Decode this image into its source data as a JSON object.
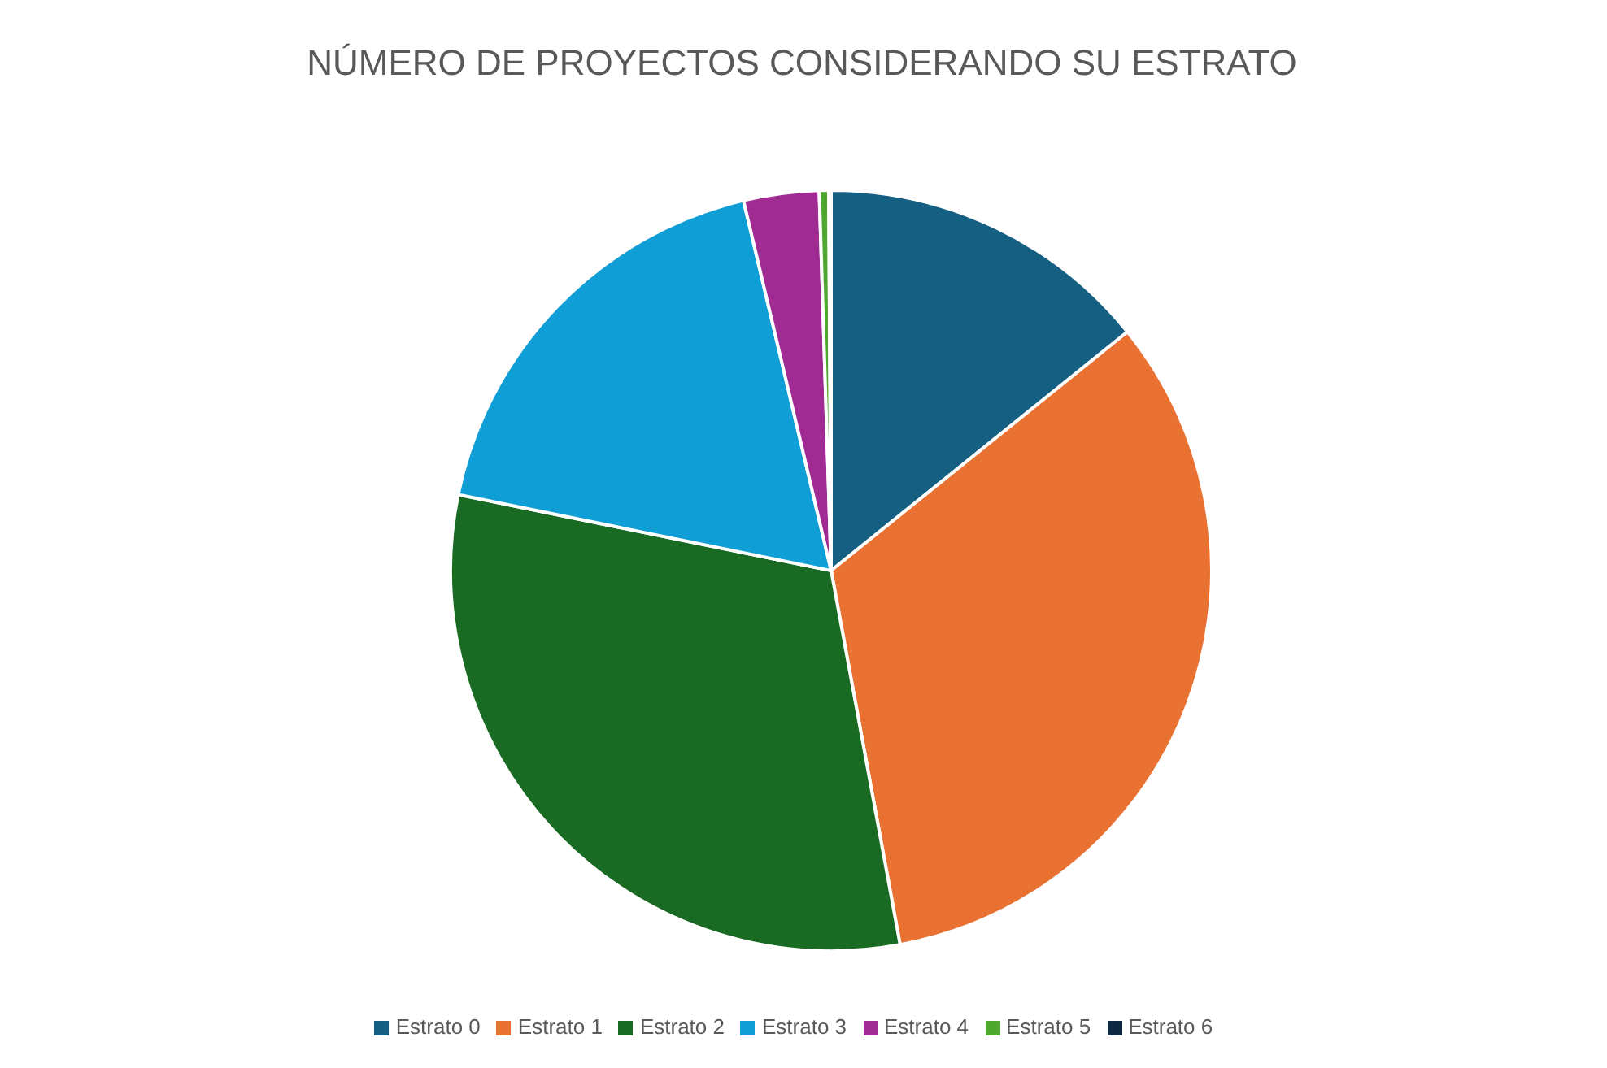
{
  "chart_data": {
    "type": "pie",
    "title": "NÚMERO DE PROYECTOS CONSIDERANDO SU ESTRATO",
    "categories": [
      "Estrato 0",
      "Estrato 1",
      "Estrato 2",
      "Estrato 3",
      "Estrato 4",
      "Estrato 5",
      "Estrato 6"
    ],
    "values": [
      14.2,
      32.9,
      31.1,
      18.1,
      3.2,
      0.4,
      0.1
    ],
    "colors": [
      "#156082",
      "#e97132",
      "#196b24",
      "#0f9ed5",
      "#a02b93",
      "#4ea72e",
      "#0e2841"
    ],
    "legend": "bottom"
  }
}
